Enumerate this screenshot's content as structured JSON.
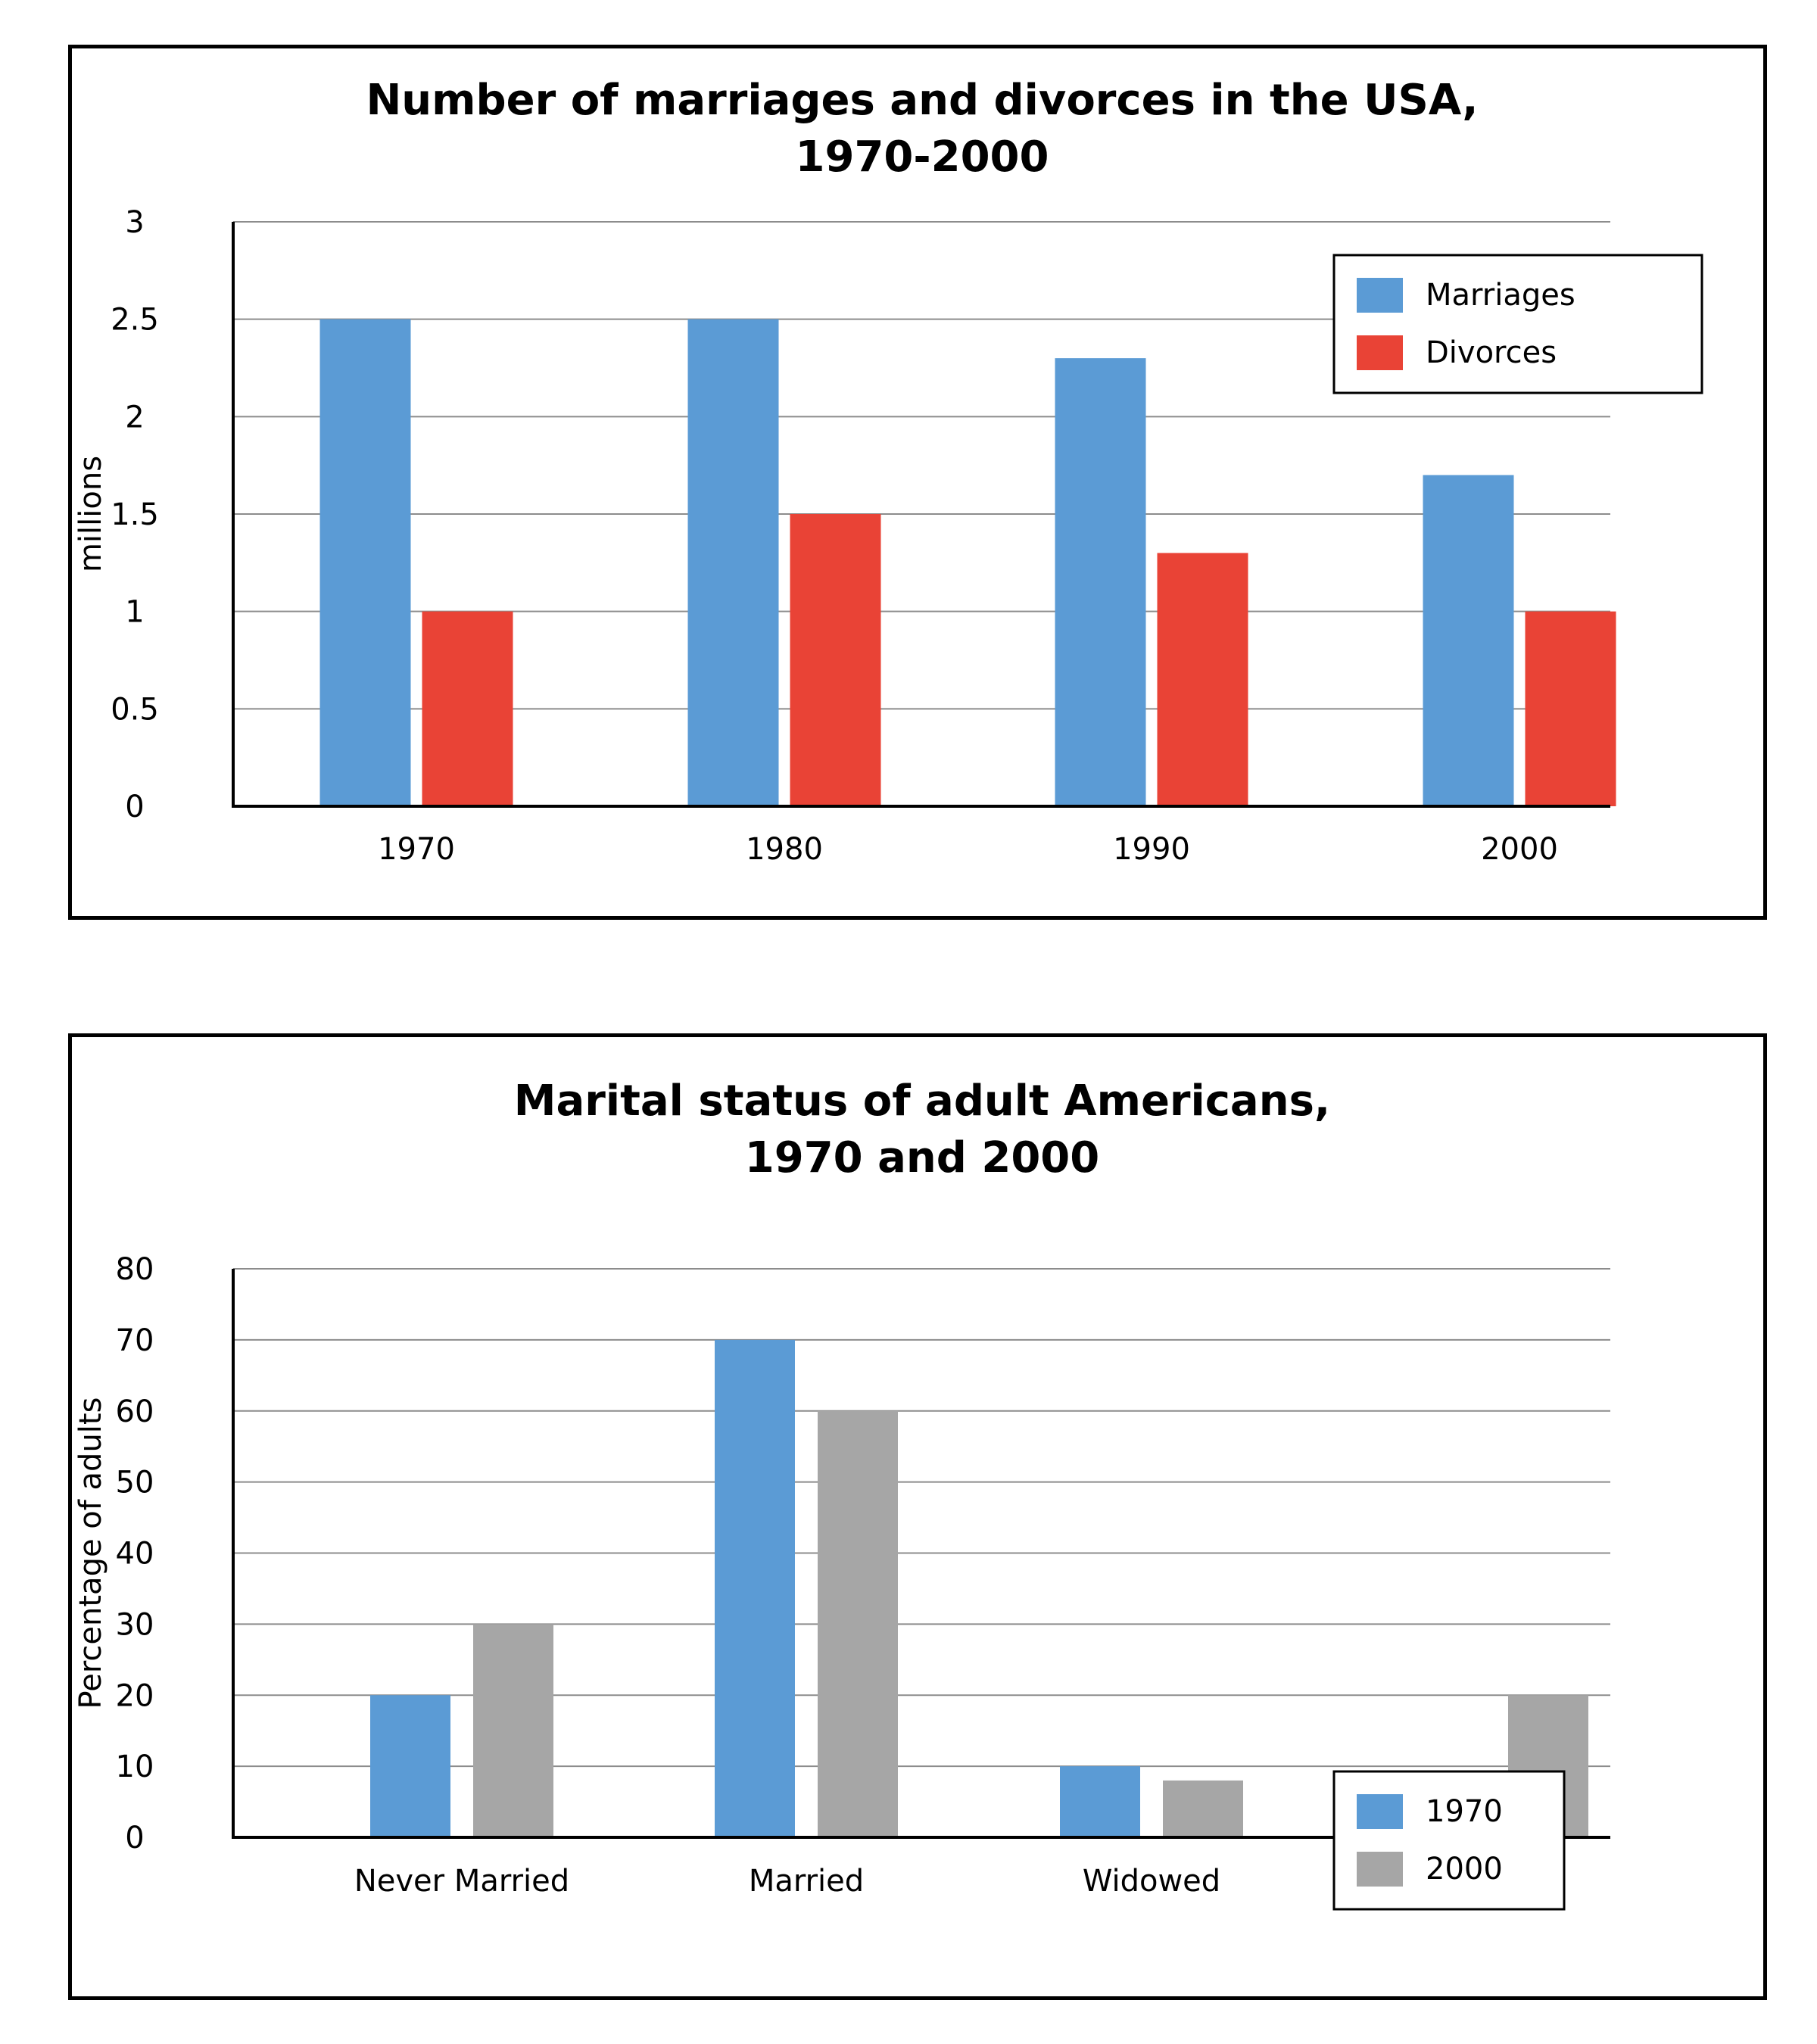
{
  "chart_data": [
    {
      "type": "bar",
      "title": [
        "Number of marriages and divorces in the USA,",
        "1970-2000"
      ],
      "xlabel": "",
      "ylabel": "millions",
      "ylim": [
        0,
        3
      ],
      "yticks": [
        "0",
        "0.5",
        "1",
        "1.5",
        "2",
        "2.5",
        "3"
      ],
      "categories": [
        "1970",
        "1980",
        "1990",
        "2000"
      ],
      "series": [
        {
          "name": "Marriages",
          "color": "#5b9bd5",
          "values": [
            2.5,
            2.5,
            2.3,
            1.7
          ]
        },
        {
          "name": "Divorces",
          "color": "#e94336",
          "values": [
            1.0,
            1.5,
            1.3,
            1.0
          ]
        }
      ],
      "legend": "top-right",
      "grid": true
    },
    {
      "type": "bar",
      "title": [
        "Marital status of adult Americans,",
        "1970 and 2000"
      ],
      "xlabel": "",
      "ylabel": "Percentage of adults",
      "ylim": [
        0,
        80
      ],
      "yticks": [
        "0",
        "10",
        "20",
        "30",
        "40",
        "50",
        "60",
        "70",
        "80"
      ],
      "categories": [
        "Never Married",
        "Married",
        "Widowed",
        ""
      ],
      "series": [
        {
          "name": "1970",
          "color": "#5b9bd5",
          "values": [
            20,
            70,
            10,
            null
          ]
        },
        {
          "name": "2000",
          "color": "#a6a6a6",
          "values": [
            30,
            60,
            8,
            20
          ]
        }
      ],
      "legend": "bottom-right",
      "grid": true
    }
  ]
}
